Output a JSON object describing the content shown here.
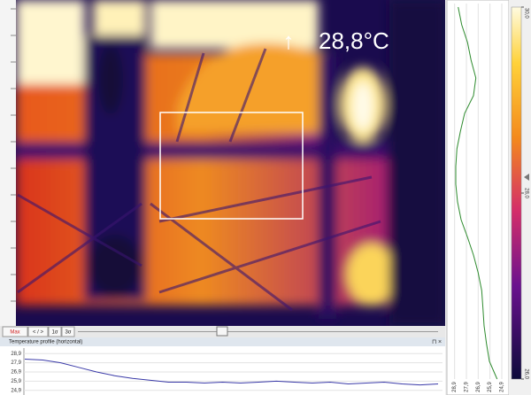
{
  "thermal_view": {
    "arrow": "↑",
    "temperature": "28,8°C"
  },
  "toolbar": {
    "buttons": [
      "Max",
      "< / >",
      "1σ",
      "3σ"
    ]
  },
  "horizontal_profile": {
    "title": "Temperature profile (horizontal)",
    "ylim": [
      24.4,
      29.5
    ],
    "yticks": [
      {
        "value": 28.9,
        "label": "28,9"
      },
      {
        "value": 27.9,
        "label": "27,9"
      },
      {
        "value": 26.9,
        "label": "26,9"
      },
      {
        "value": 25.9,
        "label": "25,9"
      },
      {
        "value": 24.9,
        "label": "24,9"
      }
    ],
    "values": [
      28.3,
      28.2,
      27.9,
      27.4,
      26.9,
      26.5,
      26.2,
      26.0,
      25.8,
      25.8,
      25.7,
      25.8,
      25.7,
      25.8,
      25.9,
      25.8,
      25.7,
      25.8,
      25.6,
      25.7,
      25.8,
      25.6,
      25.5,
      25.6
    ]
  },
  "vertical_profile": {
    "xlim": [
      29.4,
      24.3
    ],
    "xticks": [
      {
        "value": 28.9,
        "label": "28,9"
      },
      {
        "value": 27.9,
        "label": "27,9"
      },
      {
        "value": 26.9,
        "label": "26,9"
      },
      {
        "value": 25.9,
        "label": "25,9"
      },
      {
        "value": 24.9,
        "label": "24,9"
      }
    ],
    "values": [
      28.6,
      28.3,
      27.8,
      27.5,
      27.1,
      27.3,
      28.05,
      28.4,
      28.7,
      28.8,
      28.8,
      28.65,
      28.35,
      27.8,
      27.3,
      26.9,
      26.6,
      26.5,
      26.4,
      26.2,
      25.95,
      25.3
    ]
  },
  "color_scale": {
    "lim": [
      26,
      30
    ],
    "ticks": [
      {
        "value": 30,
        "label": "30,0"
      },
      {
        "value": 28,
        "label": "28,0"
      },
      {
        "value": 26,
        "label": "26,0"
      }
    ]
  }
}
